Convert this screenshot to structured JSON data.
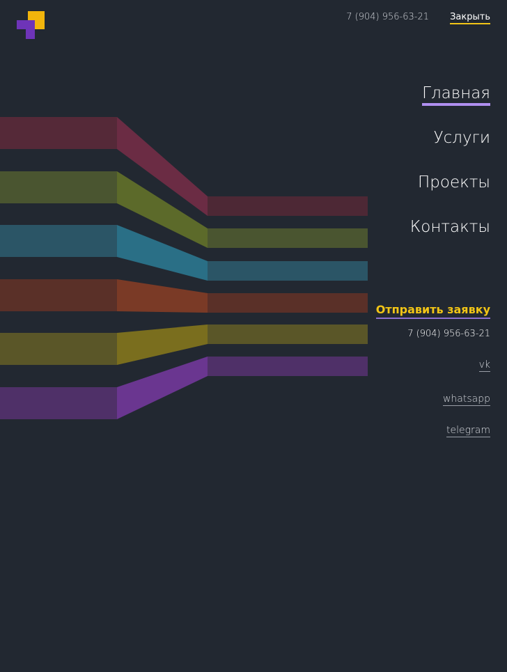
{
  "header": {
    "phone": "7 (904) 956-63-21",
    "close_label": "Закрыть"
  },
  "logo": {
    "name": "logo",
    "colors": {
      "yellow": "#f2b50c",
      "purple": "#6e34b8"
    }
  },
  "nav": {
    "items": [
      {
        "label": "Главная",
        "active": true
      },
      {
        "label": "Услуги",
        "active": false
      },
      {
        "label": "Проекты",
        "active": false
      },
      {
        "label": "Контакты",
        "active": false
      }
    ]
  },
  "contacts": {
    "request_label": "Отправить заявку",
    "phone": "7 (904) 956-63-21",
    "social": [
      {
        "label": "vk"
      },
      {
        "label": "whatsapp"
      },
      {
        "label": "telegram"
      }
    ]
  },
  "decor": {
    "stripe_colors": [
      "#6b2c44",
      "#5c6a2a",
      "#2a6f86",
      "#7a3a26",
      "#7a6e1e",
      "#6a3690"
    ]
  }
}
